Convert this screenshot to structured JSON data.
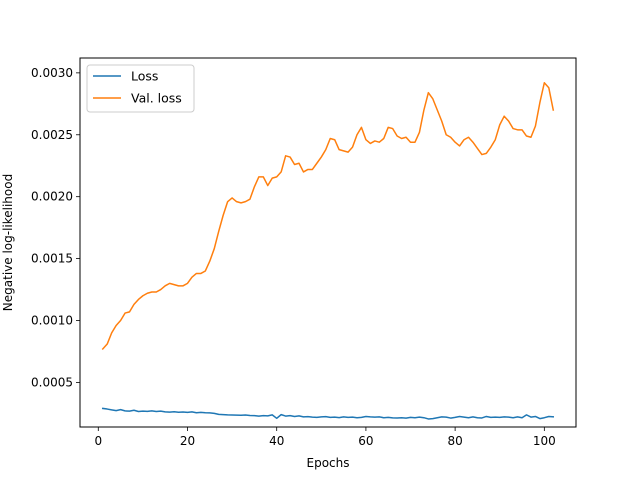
{
  "chart_data": {
    "type": "line",
    "xlabel": "Epochs",
    "ylabel": "Negative log-likelihood",
    "xlim": [
      -4.1,
      107.1
    ],
    "ylim": [
      0.00014,
      0.00312
    ],
    "xticks": [
      0,
      20,
      40,
      60,
      80,
      100
    ],
    "yticks": [
      0.0005,
      0.001,
      0.0015,
      0.002,
      0.0025,
      0.003
    ],
    "ytick_labels": [
      "0.0005",
      "0.0010",
      "0.0015",
      "0.0020",
      "0.0025",
      "0.0030"
    ],
    "grid": false,
    "legend_position": "top-left",
    "x_start": 1,
    "series": [
      {
        "name": "Loss",
        "color": "#1f77b4",
        "values": [
          0.00029,
          0.000285,
          0.000278,
          0.000272,
          0.00028,
          0.00027,
          0.000268,
          0.000275,
          0.000265,
          0.000268,
          0.000266,
          0.00027,
          0.000265,
          0.000268,
          0.000262,
          0.00026,
          0.000263,
          0.000259,
          0.000261,
          0.000258,
          0.000262,
          0.000255,
          0.000258,
          0.000255,
          0.000254,
          0.00025,
          0.000242,
          0.00024,
          0.000238,
          0.000237,
          0.000236,
          0.000235,
          0.000237,
          0.000233,
          0.000232,
          0.000228,
          0.000232,
          0.00023,
          0.000238,
          0.00021,
          0.00024,
          0.000228,
          0.000232,
          0.000225,
          0.00023,
          0.000222,
          0.000224,
          0.00022,
          0.000218,
          0.000222,
          0.000224,
          0.000218,
          0.00022,
          0.000216,
          0.000222,
          0.000218,
          0.00022,
          0.000215,
          0.000218,
          0.000225,
          0.000222,
          0.00022,
          0.000222,
          0.000215,
          0.000218,
          0.000214,
          0.000213,
          0.000215,
          0.000212,
          0.000218,
          0.000215,
          0.00022,
          0.000215,
          0.000205,
          0.000208,
          0.000215,
          0.000222,
          0.00022,
          0.000212,
          0.000218,
          0.000225,
          0.00022,
          0.000215,
          0.000222,
          0.000215,
          0.000213,
          0.000225,
          0.000218,
          0.00022,
          0.000218,
          0.000222,
          0.00022,
          0.000215,
          0.000222,
          0.000215,
          0.000238,
          0.00022,
          0.000225,
          0.000208,
          0.000215,
          0.000225,
          0.000222
        ]
      },
      {
        "name": "Val. loss",
        "color": "#ff7f0e",
        "values": [
          0.00077,
          0.00081,
          0.0009,
          0.00096,
          0.001,
          0.00106,
          0.00107,
          0.00113,
          0.00117,
          0.0012,
          0.00122,
          0.00123,
          0.00123,
          0.00125,
          0.00128,
          0.0013,
          0.00129,
          0.00128,
          0.00128,
          0.0013,
          0.00135,
          0.00138,
          0.00138,
          0.0014,
          0.00148,
          0.00158,
          0.00172,
          0.00185,
          0.00196,
          0.00199,
          0.00196,
          0.00195,
          0.00196,
          0.00198,
          0.00208,
          0.00216,
          0.00216,
          0.00209,
          0.00215,
          0.00216,
          0.0022,
          0.00233,
          0.00232,
          0.00226,
          0.00227,
          0.0022,
          0.00222,
          0.00222,
          0.00227,
          0.00232,
          0.00238,
          0.00247,
          0.00246,
          0.00238,
          0.00237,
          0.00236,
          0.0024,
          0.0025,
          0.00256,
          0.00246,
          0.00243,
          0.00245,
          0.00244,
          0.00247,
          0.00256,
          0.00255,
          0.00249,
          0.00247,
          0.00248,
          0.00244,
          0.00244,
          0.00252,
          0.0027,
          0.00284,
          0.00279,
          0.0027,
          0.00261,
          0.0025,
          0.00248,
          0.00244,
          0.00241,
          0.00246,
          0.00248,
          0.00244,
          0.00239,
          0.00234,
          0.00235,
          0.0024,
          0.00246,
          0.00258,
          0.00265,
          0.00261,
          0.00255,
          0.00254,
          0.00254,
          0.00249,
          0.00248,
          0.00257,
          0.00276,
          0.00292,
          0.00288,
          0.0027
        ]
      }
    ]
  }
}
